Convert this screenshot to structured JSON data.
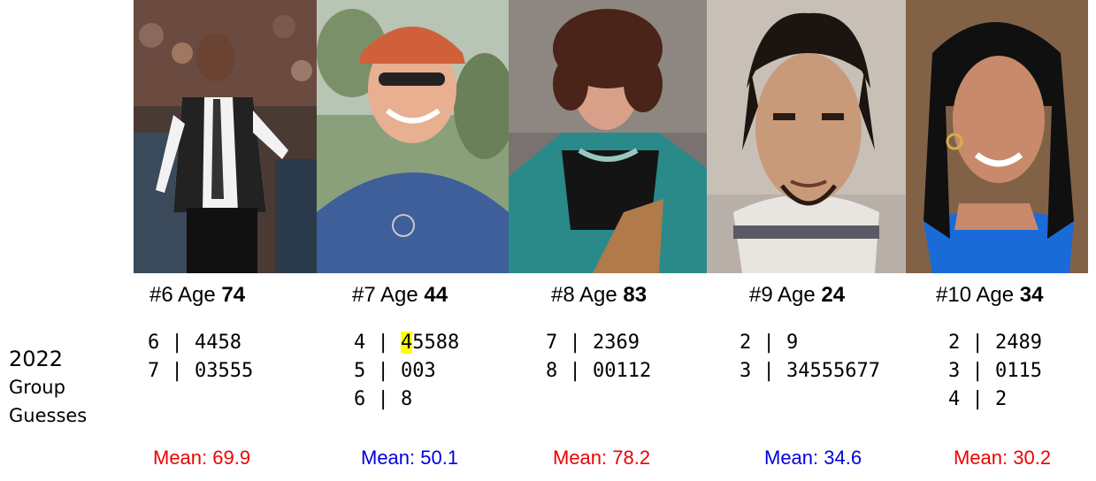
{
  "side_label": {
    "line1": "2022",
    "line2": "Group",
    "line3": "Guesses"
  },
  "colors": {
    "mean_red": "#ee0000",
    "mean_blue": "#0000dd",
    "highlight": "#ffff00"
  },
  "people": [
    {
      "number": "#6",
      "age_label": "Age",
      "age": "74",
      "stem_rows": [
        {
          "stem": "6",
          "sep": " | ",
          "leaves": "4458"
        },
        {
          "stem": "7",
          "sep": " | ",
          "leaves": "03555"
        }
      ],
      "mean_label": "Mean: 69.9",
      "mean_color": "red",
      "photo_subject": "elderly man in white shirt and tie at basketball game"
    },
    {
      "number": "#7",
      "age_label": "Age",
      "age": "44",
      "stem_rows": [
        {
          "stem": "4",
          "sep": " | ",
          "first_leaf": "4",
          "leaves": "5588"
        },
        {
          "stem": "5",
          "sep": " | ",
          "leaves": "003"
        },
        {
          "stem": "6",
          "sep": " | ",
          "leaves": "8"
        }
      ],
      "mean_label": "Mean: 50.1",
      "mean_color": "blue",
      "photo_subject": "smiling man in orange cap, sunglasses and blue t-shirt"
    },
    {
      "number": "#8",
      "age_label": "Age",
      "age": "83",
      "stem_rows": [
        {
          "stem": "7",
          "sep": " | ",
          "leaves": "2369"
        },
        {
          "stem": "8",
          "sep": " | ",
          "leaves": "00112"
        }
      ],
      "mean_label": "Mean: 78.2",
      "mean_color": "red",
      "photo_subject": "elderly woman in teal jacket seated in chair"
    },
    {
      "number": "#9",
      "age_label": "Age",
      "age": "24",
      "stem_rows": [
        {
          "stem": "2",
          "sep": " | ",
          "leaves": "9"
        },
        {
          "stem": "3",
          "sep": " | ",
          "leaves": "34555677"
        }
      ],
      "mean_label": "Mean: 34.6",
      "mean_color": "blue",
      "photo_subject": "young man mugshot"
    },
    {
      "number": "#10",
      "age_label": "Age",
      "age": "34",
      "stem_rows": [
        {
          "stem": "2",
          "sep": " | ",
          "leaves": "2489"
        },
        {
          "stem": "3",
          "sep": " | ",
          "leaves": "0115"
        },
        {
          "stem": "4",
          "sep": " | ",
          "leaves": "2"
        }
      ],
      "mean_label": "Mean: 30.2",
      "mean_color": "red",
      "photo_subject": "smiling woman in blue dress"
    }
  ]
}
